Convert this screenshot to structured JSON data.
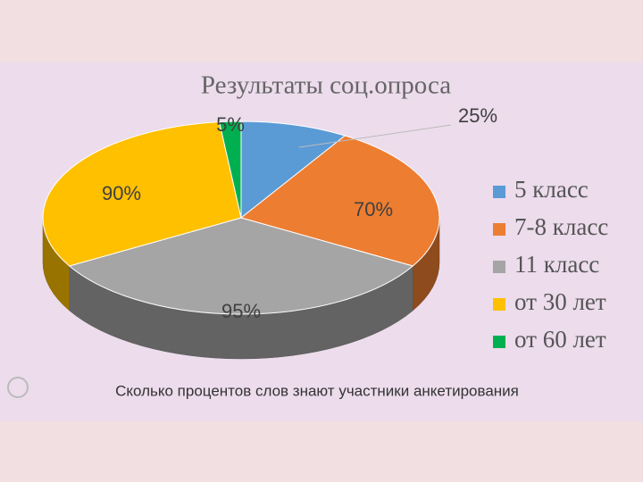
{
  "chart_data": {
    "type": "pie3d",
    "title": "Результаты соц.опроса",
    "caption": "Сколько процентов слов знают участники анкетирования",
    "categories": [
      "5 класс",
      "7-8 класс",
      "11 класс",
      "от 30 лет",
      "от 60 лет"
    ],
    "values": [
      25,
      70,
      95,
      90,
      5
    ],
    "value_labels": [
      "25%",
      "70%",
      "95%",
      "90%",
      "5%"
    ],
    "colors": [
      "#5b9bd5",
      "#ed7d31",
      "#a5a5a5",
      "#ffc000",
      "#00b050"
    ]
  }
}
